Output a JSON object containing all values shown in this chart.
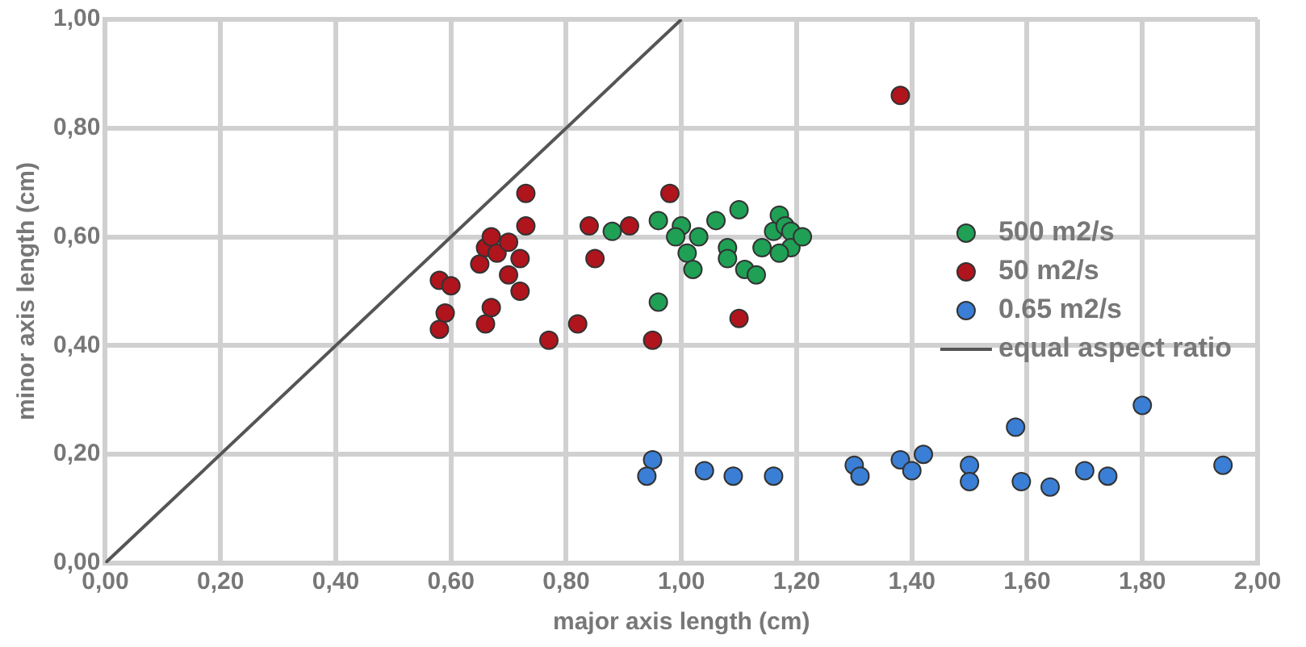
{
  "chart_data": {
    "type": "scatter",
    "xlabel": "major axis length (cm)",
    "ylabel": "minor axis length (cm)",
    "xlim": [
      0,
      2
    ],
    "ylim": [
      0,
      1
    ],
    "xticks": [
      {
        "value": 0,
        "label": "0,00"
      },
      {
        "value": 0.2,
        "label": "0,20"
      },
      {
        "value": 0.4,
        "label": "0,40"
      },
      {
        "value": 0.6,
        "label": "0,60"
      },
      {
        "value": 0.8,
        "label": "0,80"
      },
      {
        "value": 1,
        "label": "1,00"
      },
      {
        "value": 1.2,
        "label": "1,20"
      },
      {
        "value": 1.4,
        "label": "1,40"
      },
      {
        "value": 1.6,
        "label": "1,60"
      },
      {
        "value": 1.8,
        "label": "1,80"
      },
      {
        "value": 2,
        "label": "2,00"
      }
    ],
    "yticks": [
      {
        "value": 0,
        "label": "0,00"
      },
      {
        "value": 0.2,
        "label": "0,20"
      },
      {
        "value": 0.4,
        "label": "0,40"
      },
      {
        "value": 0.6,
        "label": "0,60"
      },
      {
        "value": 0.8,
        "label": "0,80"
      },
      {
        "value": 1,
        "label": "1,00"
      }
    ],
    "grid": true,
    "legend": "right",
    "marker": "circle",
    "series": [
      {
        "name": "500 m2/s",
        "color": "#1fa055",
        "x": [
          0.88,
          0.96,
          0.96,
          1.0,
          0.99,
          1.01,
          1.02,
          1.03,
          1.06,
          1.08,
          1.08,
          1.11,
          1.13,
          1.1,
          1.14,
          1.16,
          1.17,
          1.18,
          1.19,
          1.19,
          1.21,
          1.17
        ],
        "values": [
          0.61,
          0.48,
          0.63,
          0.62,
          0.6,
          0.57,
          0.54,
          0.6,
          0.63,
          0.58,
          0.56,
          0.54,
          0.53,
          0.65,
          0.58,
          0.61,
          0.64,
          0.62,
          0.61,
          0.58,
          0.6,
          0.57
        ]
      },
      {
        "name": "50 m2/s",
        "color": "#b0141c",
        "x": [
          0.58,
          0.6,
          0.58,
          0.59,
          0.65,
          0.66,
          0.67,
          0.68,
          0.7,
          0.66,
          0.67,
          0.7,
          0.73,
          0.73,
          0.72,
          0.72,
          0.77,
          0.82,
          0.84,
          0.85,
          0.91,
          0.95,
          0.98,
          1.1,
          1.38
        ],
        "values": [
          0.52,
          0.51,
          0.43,
          0.46,
          0.55,
          0.58,
          0.6,
          0.57,
          0.59,
          0.44,
          0.47,
          0.53,
          0.68,
          0.62,
          0.56,
          0.5,
          0.41,
          0.44,
          0.62,
          0.56,
          0.62,
          0.41,
          0.68,
          0.45,
          0.86
        ]
      },
      {
        "name": "0.65 m2/s",
        "color": "#3a7fd5",
        "x": [
          0.95,
          0.94,
          1.04,
          1.09,
          1.16,
          1.3,
          1.31,
          1.38,
          1.4,
          1.42,
          1.5,
          1.5,
          1.58,
          1.59,
          1.64,
          1.7,
          1.74,
          1.8,
          1.94
        ],
        "values": [
          0.19,
          0.16,
          0.17,
          0.16,
          0.16,
          0.18,
          0.16,
          0.19,
          0.17,
          0.2,
          0.18,
          0.15,
          0.25,
          0.15,
          0.14,
          0.17,
          0.16,
          0.29,
          0.18
        ]
      },
      {
        "name": "equal aspect ratio",
        "type": "line",
        "color": "#555555",
        "marker": "none",
        "x": [
          0,
          1
        ],
        "values": [
          0,
          1
        ]
      }
    ]
  }
}
